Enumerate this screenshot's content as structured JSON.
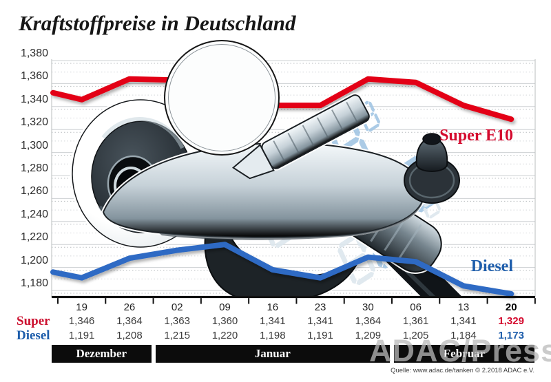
{
  "title": "Kraftstoffpreise in Deutschland",
  "chart_data": {
    "type": "line",
    "title": "Kraftstoffpreise in Deutschland",
    "ylim": [
      1180,
      1380
    ],
    "ytick_step": 20,
    "y_tick_labels": [
      "1,380",
      "1,360",
      "1,340",
      "1,320",
      "1,300",
      "1,280",
      "1,260",
      "1,240",
      "1,220",
      "1,200",
      "1,180"
    ],
    "y_tick_values": [
      1380,
      1360,
      1340,
      1320,
      1300,
      1280,
      1260,
      1240,
      1220,
      1200,
      1180
    ],
    "x_tick_labels": [
      "19",
      "26",
      "02",
      "09",
      "16",
      "23",
      "30",
      "06",
      "13",
      "20"
    ],
    "grid": "horizontal, solid major with dotted companion lines",
    "legend_position": "labels at right end of lines",
    "months": [
      {
        "label": "Dezember",
        "span": [
          0,
          1
        ]
      },
      {
        "label": "Januar",
        "span": [
          2,
          6
        ]
      },
      {
        "label": "Februar",
        "span": [
          7,
          9
        ]
      }
    ],
    "series": [
      {
        "name": "Super",
        "right_label": "Super E10",
        "color": "#e30613",
        "values": [
          1346,
          1364,
          1363,
          1360,
          1341,
          1341,
          1364,
          1361,
          1341,
          1329
        ],
        "display": [
          "1,346",
          "1,364",
          "1,363",
          "1,360",
          "1,341",
          "1,341",
          "1,364",
          "1,361",
          "1,341",
          "1,329"
        ],
        "lead_in_estimated": 1352
      },
      {
        "name": "Diesel",
        "right_label": "Diesel",
        "color": "#2f6ac4",
        "values": [
          1191,
          1208,
          1215,
          1220,
          1198,
          1191,
          1209,
          1205,
          1184,
          1173
        ],
        "display": [
          "1,191",
          "1,208",
          "1,215",
          "1,220",
          "1,198",
          "1,191",
          "1,209",
          "1,205",
          "1,184",
          "1,173"
        ],
        "lead_in_estimated": 1196
      }
    ]
  },
  "pump_display_watermark": {
    "super_text": "SUPER E10",
    "diesel_text": "DIESEL"
  },
  "footer": {
    "source": "Quelle: www.adac.de/tanken   © 2.2018   ADAC e.V.",
    "watermark": "ADAC/Presse"
  }
}
